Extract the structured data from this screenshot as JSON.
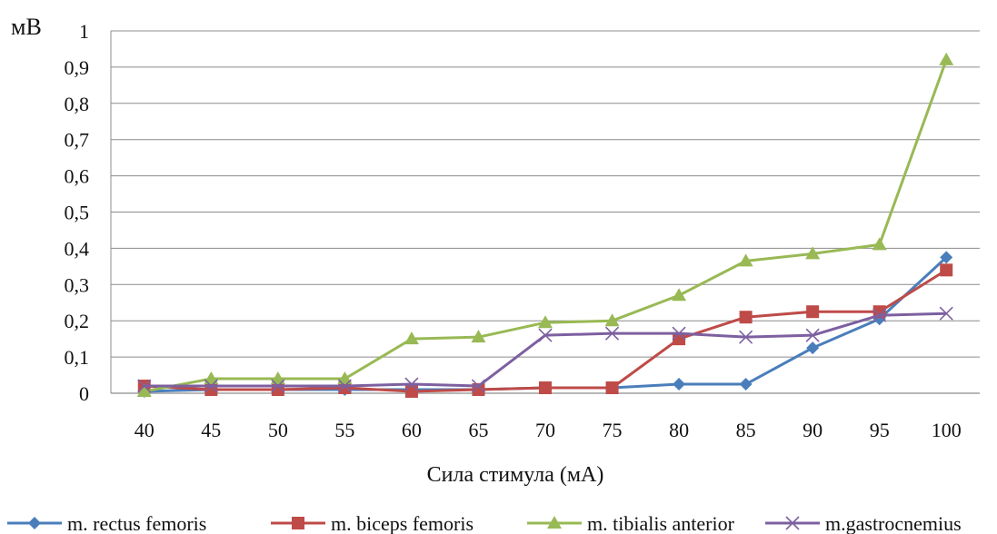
{
  "chart_data": {
    "type": "line",
    "title": "",
    "xlabel": "Сила стимула (мА)",
    "ylabel": "мВ",
    "categories": [
      "40",
      "45",
      "50",
      "55",
      "60",
      "65",
      "70",
      "75",
      "80",
      "85",
      "90",
      "95",
      "100"
    ],
    "ylim": [
      0,
      1
    ],
    "y_ticks": [
      "0",
      "0,1",
      "0,2",
      "0,3",
      "0,4",
      "0,5",
      "0,6",
      "0,7",
      "0,8",
      "0,9",
      "1"
    ],
    "grid": "horizontal",
    "legend_position": "bottom",
    "series": [
      {
        "name": "m. rectus femoris",
        "color": "#4a7ebb",
        "marker": "diamond",
        "values": [
          0.005,
          0.01,
          0.01,
          0.01,
          0.01,
          0.01,
          0.015,
          0.015,
          0.025,
          0.025,
          0.125,
          0.205,
          0.375
        ]
      },
      {
        "name": "m. biceps femoris",
        "color": "#be4b48",
        "marker": "square",
        "values": [
          0.02,
          0.01,
          0.01,
          0.015,
          0.005,
          0.01,
          0.015,
          0.015,
          0.15,
          0.21,
          0.225,
          0.225,
          0.34
        ]
      },
      {
        "name": "m. tibialis anterior",
        "color": "#98b954",
        "marker": "triangle",
        "values": [
          0.005,
          0.04,
          0.04,
          0.04,
          0.15,
          0.155,
          0.195,
          0.2,
          0.27,
          0.365,
          0.385,
          0.41,
          0.92
        ]
      },
      {
        "name": "m.gastrocnemius",
        "color": "#7d60a0",
        "marker": "x",
        "values": [
          0.02,
          0.02,
          0.02,
          0.02,
          0.025,
          0.02,
          0.16,
          0.165,
          0.165,
          0.155,
          0.16,
          0.215,
          0.22
        ]
      }
    ]
  }
}
